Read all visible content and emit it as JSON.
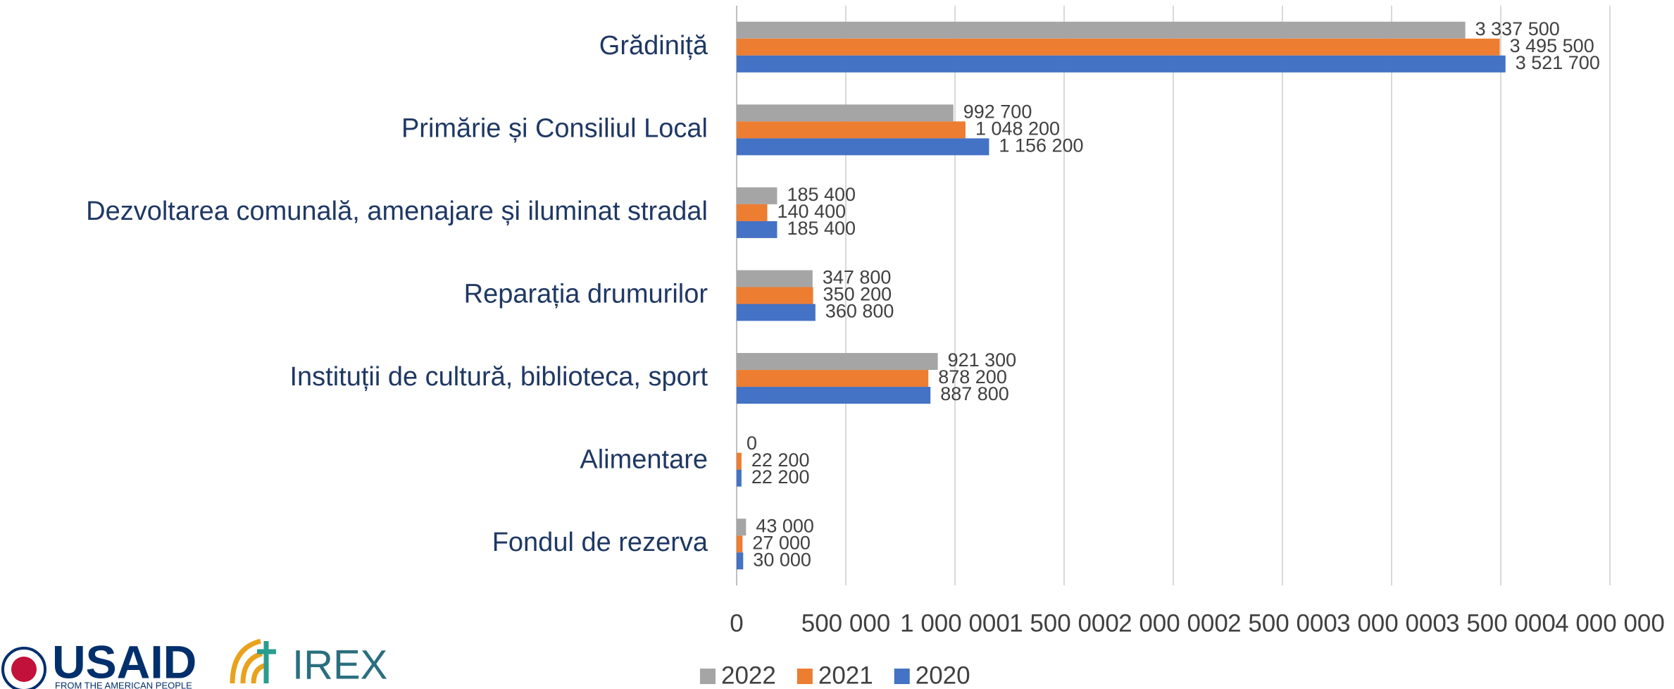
{
  "chart_data": {
    "type": "bar",
    "orientation": "horizontal",
    "categories": [
      "Grădiniță",
      "Primărie și Consiliul Local",
      "Dezvoltarea comunală, amenajare și iluminat stradal",
      "Reparația drumurilor",
      "Instituții de cultură, biblioteca, sport",
      "Alimentare",
      "Fondul de rezerva"
    ],
    "series": [
      {
        "name": "2022",
        "color": "#a5a5a5",
        "values": [
          3337500,
          992700,
          185400,
          347800,
          921300,
          0,
          43000
        ],
        "value_labels": [
          "3 337 500",
          "992 700",
          "185 400",
          "347 800",
          "921 300",
          "0",
          "43 000"
        ]
      },
      {
        "name": "2021",
        "color": "#ed7d31",
        "values": [
          3495500,
          1048200,
          140400,
          350200,
          878200,
          22200,
          27000
        ],
        "value_labels": [
          "3 495 500",
          "1 048 200",
          "140 400",
          "350 200",
          "878 200",
          "22 200",
          "27 000"
        ]
      },
      {
        "name": "2020",
        "color": "#4472c4",
        "values": [
          3521700,
          1156200,
          185400,
          360800,
          887800,
          22200,
          30000
        ],
        "value_labels": [
          "3 521 700",
          "1 156 200",
          "185 400",
          "360 800",
          "887 800",
          "22 200",
          "30 000"
        ]
      }
    ],
    "xlim": [
      0,
      4000000
    ],
    "xticks": [
      0,
      {
        "value": 500000,
        "label": "500 000"
      },
      {
        "value": 1000000,
        "label": "1 000 000"
      },
      {
        "value": 1500000,
        "label": "1 500 000"
      },
      {
        "value": 2000000,
        "label": "2 000 000"
      },
      {
        "value": 2500000,
        "label": "2 500 000"
      },
      {
        "value": 3000000,
        "label": "3 000 000"
      },
      {
        "value": 3500000,
        "label": "3 500 000"
      },
      {
        "value": 4000000,
        "label": "4 000 000"
      }
    ],
    "grid": true,
    "legend": "bottom"
  },
  "logos": {
    "usaid": "USAID",
    "usaid_tagline": "FROM THE AMERICAN PEOPLE",
    "irex": "IREX"
  }
}
